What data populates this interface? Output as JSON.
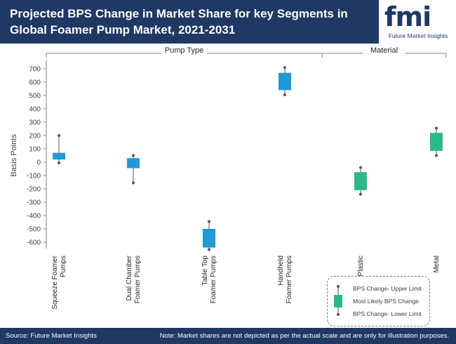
{
  "header": {
    "title": "Projected BPS Change in Market Share for key Segments in Global Foamer Pump Market, 2021-2031",
    "logo_text": "fmi",
    "logo_subtitle": "Future Market Insights"
  },
  "footer": {
    "source": "Source: Future Market Insights",
    "note": "Note: Market shares are not depicted as per the actual scale and are only for illustration purposes."
  },
  "legend": {
    "upper": "BPS Change- Upper Limit",
    "likely": "Most Likely BPS Change",
    "lower": "BPS Change- Lower Limit"
  },
  "colors": {
    "header_bg": "#1f3864",
    "blue": "#1e9ad6",
    "green": "#2eb88a"
  },
  "chart_data": {
    "type": "box",
    "title": "Projected BPS Change in Market Share for key Segments in Global Foamer Pump Market, 2021-2031",
    "ylabel": "Basis Points",
    "ylim": [
      -700,
      750
    ],
    "yticks": [
      700,
      600,
      500,
      400,
      300,
      200,
      100,
      0,
      -100,
      -200,
      -300,
      -400,
      -500,
      -600
    ],
    "groups": [
      {
        "name": "Pump Type",
        "members": [
          0,
          1,
          2,
          3
        ]
      },
      {
        "name": "Material",
        "members": [
          4,
          5
        ]
      }
    ],
    "categories": [
      {
        "label_lines": [
          "Squeeze Foamer",
          "Pumps"
        ],
        "lower": -5,
        "box_low": 20,
        "box_high": 70,
        "upper": 200,
        "color": "#1e9ad6"
      },
      {
        "label_lines": [
          "Dual Chamber",
          "Foamer Pumps"
        ],
        "lower": -155,
        "box_low": -45,
        "box_high": 30,
        "upper": 50,
        "color": "#1e9ad6"
      },
      {
        "label_lines": [
          "Table Top",
          "Foamer Pumps"
        ],
        "lower": -655,
        "box_low": -640,
        "box_high": -500,
        "upper": -445,
        "color": "#1e9ad6"
      },
      {
        "label_lines": [
          "Handheld",
          "Foamer Pumps"
        ],
        "lower": 505,
        "box_low": 540,
        "box_high": 670,
        "upper": 710,
        "color": "#1e9ad6"
      },
      {
        "label_lines": [
          "Plastic"
        ],
        "lower": -240,
        "box_low": -210,
        "box_high": -75,
        "upper": -40,
        "color": "#2eb88a"
      },
      {
        "label_lines": [
          "Metal"
        ],
        "lower": 50,
        "box_low": 85,
        "box_high": 220,
        "upper": 255,
        "color": "#2eb88a"
      }
    ]
  }
}
